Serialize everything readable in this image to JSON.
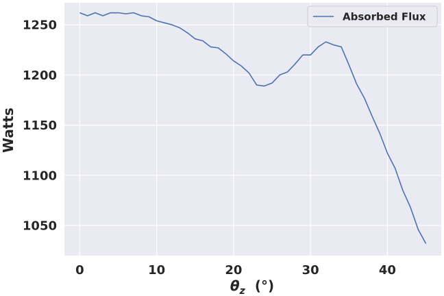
{
  "chart_data": {
    "type": "line",
    "xlabel": "θz (°)",
    "xlabel_symbol": "θ",
    "xlabel_subscript": "z",
    "xlabel_unit": "(°)",
    "ylabel": "Watts",
    "xlim": [
      -2,
      47
    ],
    "ylim": [
      1020,
      1272
    ],
    "xticks": [
      0,
      10,
      20,
      30,
      40
    ],
    "yticks": [
      1050,
      1100,
      1150,
      1200,
      1250
    ],
    "grid": true,
    "legend_position": "top-right",
    "background_color": "#eaeaf2",
    "series": [
      {
        "name": "Absorbed Flux",
        "color": "#4c72b0",
        "x": [
          0,
          1,
          2,
          3,
          4,
          5,
          6,
          7,
          8,
          9,
          10,
          11,
          12,
          13,
          14,
          15,
          16,
          17,
          18,
          19,
          20,
          21,
          22,
          23,
          24,
          25,
          26,
          27,
          28,
          29,
          30,
          31,
          32,
          33,
          34,
          35,
          36,
          37,
          38,
          39,
          40,
          41,
          42,
          43,
          44,
          45
        ],
        "y": [
          1262,
          1259,
          1262,
          1259,
          1262,
          1262,
          1261,
          1262,
          1259,
          1258,
          1254,
          1252,
          1250,
          1247,
          1242,
          1236,
          1234,
          1228,
          1227,
          1221,
          1214,
          1209,
          1202,
          1190,
          1189,
          1192,
          1200,
          1203,
          1211,
          1220,
          1220,
          1228,
          1233,
          1230,
          1228,
          1210,
          1191,
          1177,
          1159,
          1142,
          1122,
          1107,
          1085,
          1068,
          1046,
          1032
        ]
      }
    ]
  }
}
